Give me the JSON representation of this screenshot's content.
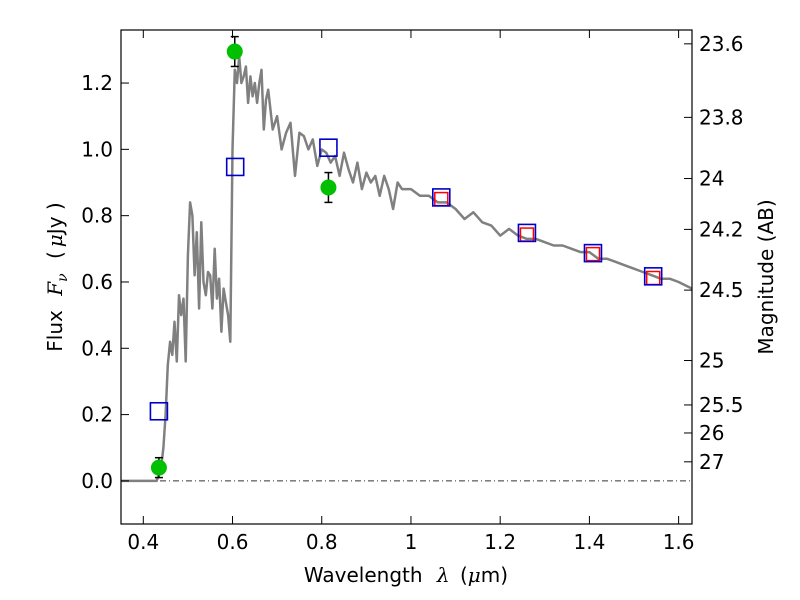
{
  "chart_data": {
    "type": "scatter",
    "xlabel_text": "Wavelength",
    "xlabel_symbol": "λ",
    "xlabel_unit_open": "(",
    "xlabel_unit_mu": "μ",
    "xlabel_unit_rest": "m)",
    "ylabel_text": "Flux",
    "ylabel_symbol": "F",
    "ylabel_sub": "ν",
    "ylabel_unit_open": "(",
    "ylabel_unit_mu": "μ",
    "ylabel_unit_rest": "Jy )",
    "y2label": "Magnitude (AB)",
    "xlim": [
      0.35,
      1.63
    ],
    "ylim": [
      -0.13,
      1.36
    ],
    "grid": false,
    "x_ticks": [
      {
        "value": 0.4,
        "label": "0.4"
      },
      {
        "value": 0.6,
        "label": "0.6"
      },
      {
        "value": 0.8,
        "label": "0.8"
      },
      {
        "value": 1.0,
        "label": "1"
      },
      {
        "value": 1.2,
        "label": "1.2"
      },
      {
        "value": 1.4,
        "label": "1.4"
      },
      {
        "value": 1.6,
        "label": "1.6"
      }
    ],
    "y_ticks": [
      {
        "value": 0.0,
        "label": "0.0"
      },
      {
        "value": 0.2,
        "label": "0.2"
      },
      {
        "value": 0.4,
        "label": "0.4"
      },
      {
        "value": 0.6,
        "label": "0.6"
      },
      {
        "value": 0.8,
        "label": "0.8"
      },
      {
        "value": 1.0,
        "label": "1.0"
      },
      {
        "value": 1.2,
        "label": "1.2"
      }
    ],
    "y2_ticks": [
      {
        "mag": 23.6,
        "label": "23.6"
      },
      {
        "mag": 23.8,
        "label": "23.8"
      },
      {
        "mag": 24.0,
        "label": "24"
      },
      {
        "mag": 24.2,
        "label": "24.2"
      },
      {
        "mag": 24.5,
        "label": "24.5"
      },
      {
        "mag": 25.0,
        "label": "25"
      },
      {
        "mag": 25.5,
        "label": "25.5"
      },
      {
        "mag": 26.0,
        "label": "26"
      },
      {
        "mag": 27.0,
        "label": "27"
      }
    ],
    "model_sed": {
      "color": "#808080",
      "x": [
        0.35,
        0.42,
        0.43,
        0.44,
        0.445,
        0.45,
        0.455,
        0.46,
        0.465,
        0.47,
        0.475,
        0.48,
        0.485,
        0.49,
        0.495,
        0.5,
        0.505,
        0.51,
        0.515,
        0.52,
        0.525,
        0.53,
        0.535,
        0.54,
        0.545,
        0.55,
        0.555,
        0.56,
        0.565,
        0.57,
        0.575,
        0.58,
        0.585,
        0.59,
        0.595,
        0.6,
        0.605,
        0.61,
        0.615,
        0.62,
        0.625,
        0.63,
        0.635,
        0.64,
        0.645,
        0.65,
        0.655,
        0.66,
        0.665,
        0.67,
        0.675,
        0.68,
        0.69,
        0.7,
        0.71,
        0.72,
        0.73,
        0.74,
        0.75,
        0.76,
        0.77,
        0.78,
        0.79,
        0.8,
        0.81,
        0.82,
        0.83,
        0.84,
        0.85,
        0.86,
        0.87,
        0.88,
        0.89,
        0.9,
        0.91,
        0.92,
        0.93,
        0.94,
        0.95,
        0.96,
        0.97,
        0.98,
        1.0,
        1.02,
        1.04,
        1.06,
        1.08,
        1.1,
        1.12,
        1.14,
        1.16,
        1.18,
        1.2,
        1.22,
        1.24,
        1.26,
        1.28,
        1.3,
        1.32,
        1.34,
        1.36,
        1.38,
        1.4,
        1.42,
        1.44,
        1.46,
        1.48,
        1.5,
        1.52,
        1.54,
        1.56,
        1.58,
        1.6,
        1.63
      ],
      "y": [
        0.0,
        0.0,
        0.0,
        0.04,
        0.1,
        0.2,
        0.35,
        0.42,
        0.38,
        0.48,
        0.36,
        0.56,
        0.5,
        0.55,
        0.36,
        0.68,
        0.84,
        0.8,
        0.62,
        0.75,
        0.52,
        0.78,
        0.6,
        0.56,
        0.63,
        0.62,
        0.52,
        0.7,
        0.55,
        0.61,
        0.45,
        0.58,
        0.54,
        0.5,
        0.42,
        1.0,
        1.24,
        1.2,
        1.28,
        1.2,
        1.22,
        1.25,
        1.14,
        1.22,
        1.16,
        1.2,
        1.14,
        1.2,
        1.24,
        1.06,
        1.15,
        1.18,
        1.06,
        1.1,
        1.0,
        1.05,
        1.08,
        0.92,
        1.05,
        1.04,
        1.0,
        1.03,
        0.95,
        1.0,
        0.99,
        0.96,
        0.98,
        0.92,
        0.99,
        0.94,
        0.9,
        0.96,
        0.88,
        0.93,
        0.9,
        0.92,
        0.86,
        0.92,
        0.88,
        0.82,
        0.9,
        0.88,
        0.88,
        0.86,
        0.86,
        0.84,
        0.84,
        0.82,
        0.79,
        0.81,
        0.78,
        0.77,
        0.74,
        0.76,
        0.74,
        0.73,
        0.73,
        0.72,
        0.71,
        0.71,
        0.7,
        0.69,
        0.69,
        0.67,
        0.67,
        0.66,
        0.65,
        0.64,
        0.63,
        0.62,
        0.61,
        0.61,
        0.6,
        0.58
      ]
    },
    "observed_points": {
      "color": "#00c000",
      "points": [
        {
          "x": 0.435,
          "y": 0.04,
          "err": 0.03
        },
        {
          "x": 0.605,
          "y": 1.295,
          "err": 0.045
        },
        {
          "x": 0.815,
          "y": 0.885,
          "err": 0.045
        }
      ]
    },
    "blue_squares": {
      "color": "#0000cc",
      "points": [
        {
          "x": 0.435,
          "y": 0.21
        },
        {
          "x": 0.606,
          "y": 0.947
        },
        {
          "x": 0.815,
          "y": 1.005
        },
        {
          "x": 1.068,
          "y": 0.855
        },
        {
          "x": 1.26,
          "y": 0.748
        },
        {
          "x": 1.408,
          "y": 0.687
        },
        {
          "x": 1.543,
          "y": 0.617
        }
      ]
    },
    "red_squares": {
      "color": "#ff0000",
      "points": [
        {
          "x": 1.068,
          "y": 0.85
        },
        {
          "x": 1.26,
          "y": 0.743
        },
        {
          "x": 1.408,
          "y": 0.684
        },
        {
          "x": 1.543,
          "y": 0.612
        }
      ]
    },
    "zero_line": {
      "y": 0.0,
      "color": "#333333"
    }
  }
}
